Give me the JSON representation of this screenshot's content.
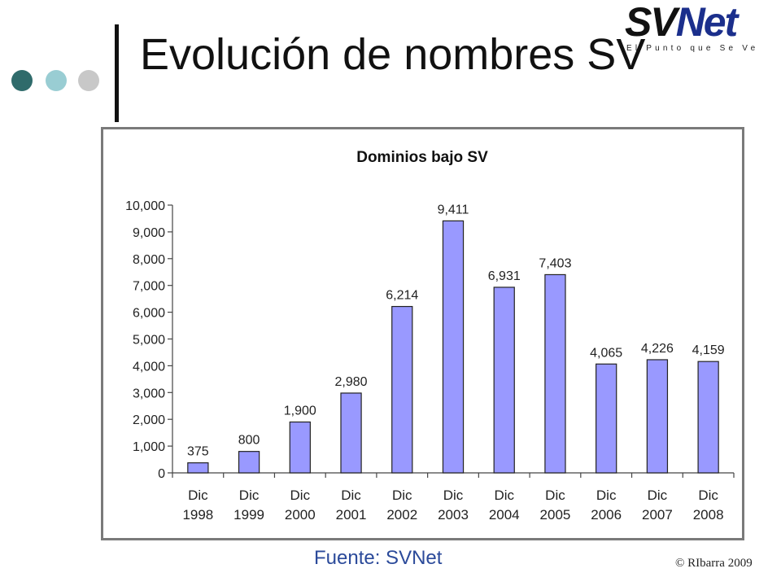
{
  "slide": {
    "title": "Evolución de nombres SV",
    "source": "Fuente: SVNet",
    "copyright": "© RIbarra 2009"
  },
  "logo": {
    "sv": "SV",
    "net": "Net",
    "tagline": "El Punto que Se Ve"
  },
  "colors": {
    "dot1": "#2f6b6b",
    "dot2": "#99cdd3",
    "dot3": "#c8c8c8",
    "divider": "#111111",
    "bar_fill": "#9999ff",
    "bar_stroke": "#222222"
  },
  "chart_data": {
    "type": "bar",
    "title": "Dominios bajo SV",
    "categories": [
      [
        "Dic",
        "1998"
      ],
      [
        "Dic",
        "1999"
      ],
      [
        "Dic",
        "2000"
      ],
      [
        "Dic",
        "2001"
      ],
      [
        "Dic",
        "2002"
      ],
      [
        "Dic",
        "2003"
      ],
      [
        "Dic",
        "2004"
      ],
      [
        "Dic",
        "2005"
      ],
      [
        "Dic",
        "2006"
      ],
      [
        "Dic",
        "2007"
      ],
      [
        "Dic",
        "2008"
      ]
    ],
    "values": [
      375,
      800,
      1900,
      2980,
      6214,
      9411,
      6931,
      7403,
      4065,
      4226,
      4159
    ],
    "value_labels": [
      "375",
      "800",
      "1,900",
      "2,980",
      "6,214",
      "9,411",
      "6,931",
      "7,403",
      "4,065",
      "4,226",
      "4,159"
    ],
    "ylim": [
      0,
      10000
    ],
    "yticks": [
      0,
      1000,
      2000,
      3000,
      4000,
      5000,
      6000,
      7000,
      8000,
      9000,
      10000
    ],
    "ytick_labels": [
      "0",
      "1,000",
      "2,000",
      "3,000",
      "4,000",
      "5,000",
      "6,000",
      "7,000",
      "8,000",
      "9,000",
      "10,000"
    ],
    "grid": false,
    "legend": "none"
  }
}
